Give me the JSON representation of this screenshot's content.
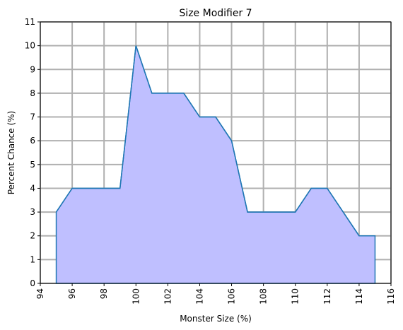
{
  "chart_data": {
    "type": "area",
    "title": "Size Modifier 7",
    "xlabel": "Monster Size (%)",
    "ylabel": "Percent Chance (%)",
    "xlim": [
      94,
      116
    ],
    "ylim": [
      0,
      11
    ],
    "xticks": [
      94,
      96,
      98,
      100,
      102,
      104,
      106,
      108,
      110,
      112,
      114,
      116
    ],
    "yticks": [
      0,
      1,
      2,
      3,
      4,
      5,
      6,
      7,
      8,
      9,
      10,
      11
    ],
    "grid": true,
    "series": [
      {
        "name": "Size Modifier 7",
        "x": [
          95,
          96,
          97,
          98,
          99,
          100,
          101,
          102,
          103,
          104,
          105,
          106,
          107,
          108,
          109,
          110,
          111,
          112,
          113,
          114,
          115
        ],
        "y": [
          3,
          4,
          4,
          4,
          4,
          10,
          8,
          8,
          8,
          7,
          7,
          6,
          3,
          3,
          3,
          3,
          4,
          4,
          3,
          2,
          2
        ]
      }
    ],
    "colors": {
      "line": "#1f77b4",
      "fill": "#bfbfff",
      "grid": "#b0b0b0",
      "axes": "#000000"
    }
  }
}
